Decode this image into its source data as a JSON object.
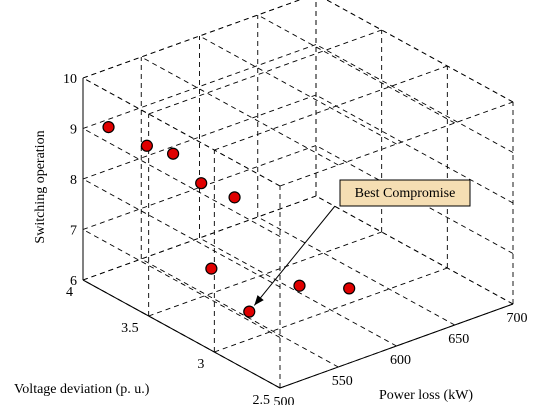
{
  "chart_data": {
    "type": "scatter3d",
    "title": "",
    "xlabel": "Power loss (kW)",
    "ylabel": "Voltage deviation (p. u.)",
    "zlabel": "Switching operation",
    "xlim": [
      500,
      700
    ],
    "ylim": [
      2.5,
      4
    ],
    "zlim": [
      6,
      10
    ],
    "xticks": [
      500,
      550,
      600,
      650,
      700
    ],
    "yticks": [
      2.5,
      3,
      3.5,
      4
    ],
    "zticks": [
      6,
      7,
      8,
      9,
      10
    ],
    "xtick_labels": [
      "500",
      "550",
      "600",
      "650",
      "700"
    ],
    "ytick_labels": [
      "2.5",
      "3",
      "3.5",
      "4"
    ],
    "ztick_labels": [
      "6",
      "7",
      "8",
      "9",
      "10"
    ],
    "grid": true,
    "marker_color": "#e00000",
    "annotation": {
      "text": "Best Compromise",
      "box_color": "#f5deb3",
      "target_point": 6
    },
    "points": [
      {
        "x": 505,
        "y": 3.85,
        "z": 9.2
      },
      {
        "x": 512,
        "y": 3.62,
        "z": 9.1
      },
      {
        "x": 530,
        "y": 3.58,
        "z": 8.85
      },
      {
        "x": 562,
        "y": 3.65,
        "z": 7.9
      },
      {
        "x": 585,
        "y": 3.6,
        "z": 7.5
      },
      {
        "x": 520,
        "y": 3.2,
        "z": 7.2
      },
      {
        "x": 530,
        "y": 3.0,
        "z": 6.55
      },
      {
        "x": 590,
        "y": 3.15,
        "z": 6.35
      },
      {
        "x": 618,
        "y": 3.02,
        "z": 6.25
      }
    ]
  }
}
